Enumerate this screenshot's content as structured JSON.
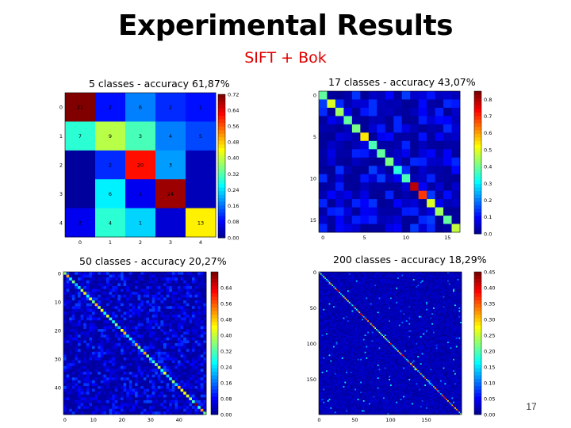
{
  "title": "Experimental Results",
  "subtitle": "SIFT + Bok",
  "page_number": "17",
  "chart_data": [
    {
      "type": "heatmap",
      "title": "5 classes - accuracy 61,87%",
      "n": 5,
      "xticks": [
        "0",
        "1",
        "2",
        "3",
        "4"
      ],
      "yticks": [
        "0",
        "1",
        "2",
        "3",
        "4"
      ],
      "vmax": 0.72,
      "colorbar_ticks": [
        "0.72",
        "0.64",
        "0.56",
        "0.48",
        "0.40",
        "0.32",
        "0.24",
        "0.16",
        "0.08",
        "0.00"
      ],
      "matrix": [
        [
          0.72,
          0.1,
          0.18,
          0.12,
          0.1
        ],
        [
          0.3,
          0.4,
          0.32,
          0.18,
          0.14
        ],
        [
          0.02,
          0.12,
          0.62,
          0.2,
          0.04
        ],
        [
          0.02,
          0.26,
          0.08,
          0.7,
          0.04
        ],
        [
          0.08,
          0.3,
          0.24,
          0.06,
          0.46
        ]
      ],
      "cell_labels": [
        [
          "21",
          "2",
          "6",
          "2",
          "1"
        ],
        [
          "7",
          "9",
          "3",
          "4",
          "5"
        ],
        [
          "",
          "2",
          "20",
          "3",
          ""
        ],
        [
          "",
          "6",
          "1",
          "24",
          ""
        ],
        [
          "2",
          "4",
          "1",
          "",
          "13"
        ]
      ]
    },
    {
      "type": "heatmap",
      "title": "17 classes - accuracy 43,07%",
      "n": 17,
      "xticks": [
        "0",
        "5",
        "10",
        "15"
      ],
      "yticks": [
        "0",
        "5",
        "10",
        "15"
      ],
      "vmax": 0.85,
      "colorbar_ticks": [
        "0.8",
        "0.7",
        "0.6",
        "0.5",
        "0.4",
        "0.3",
        "0.2",
        "0.1",
        "0.0"
      ],
      "diagonal": [
        0.4,
        0.5,
        0.45,
        0.4,
        0.42,
        0.55,
        0.38,
        0.4,
        0.42,
        0.35,
        0.38,
        0.8,
        0.7,
        0.5,
        0.45,
        0.4,
        0.48
      ]
    },
    {
      "type": "heatmap",
      "title": "50 classes - accuracy 20,27%",
      "n": 50,
      "xticks": [
        "0",
        "10",
        "20",
        "30",
        "40"
      ],
      "yticks": [
        "0",
        "10",
        "20",
        "30",
        "40"
      ],
      "vmax": 0.72,
      "colorbar_ticks": [
        "0.64",
        "0.56",
        "0.48",
        "0.40",
        "0.32",
        "0.24",
        "0.16",
        "0.08",
        "0.00"
      ]
    },
    {
      "type": "heatmap",
      "title": "200 classes - accuracy 18,29%",
      "n": 200,
      "xticks": [
        "0",
        "50",
        "100",
        "150"
      ],
      "yticks": [
        "0",
        "50",
        "100",
        "150"
      ],
      "vmax": 0.45,
      "colorbar_ticks": [
        "0.45",
        "0.40",
        "0.35",
        "0.30",
        "0.25",
        "0.20",
        "0.15",
        "0.10",
        "0.05",
        "0.00"
      ]
    }
  ]
}
